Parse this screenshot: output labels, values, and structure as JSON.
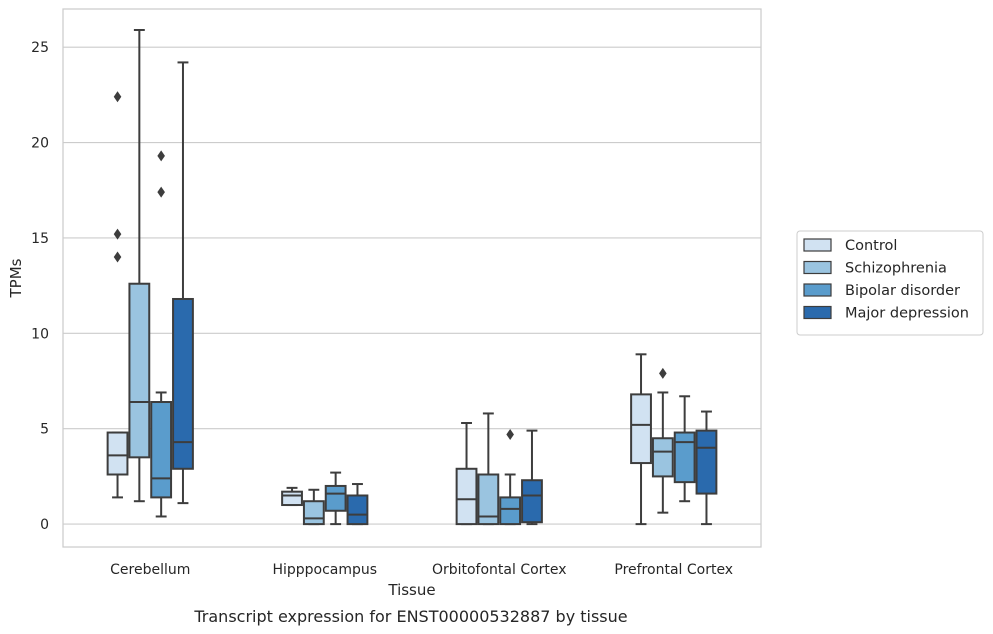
{
  "caption": "Transcript expression for ENST00000532887 by tissue",
  "chart_data": {
    "type": "box",
    "xlabel": "Tissue",
    "ylabel": "TPMs",
    "ylim": [
      -1.2,
      27
    ],
    "yticks": [
      0,
      5,
      10,
      15,
      20,
      25
    ],
    "grid": "horizontal",
    "legend_position": "right",
    "categories": [
      "Cerebellum",
      "Hipppocampus",
      "Orbitofontal Cortex",
      "Prefrontal Cortex"
    ],
    "series": [
      {
        "name": "Control",
        "color": "#d1e2f2",
        "boxes": [
          {
            "whislo": 1.4,
            "q1": 2.6,
            "med": 3.6,
            "q3": 4.8,
            "whishi": 4.8,
            "fliers": [
              14.0,
              15.2,
              22.4
            ]
          },
          {
            "whislo": 1.0,
            "q1": 1.0,
            "med": 1.5,
            "q3": 1.7,
            "whishi": 1.9,
            "fliers": []
          },
          {
            "whislo": 0.0,
            "q1": 0.0,
            "med": 1.3,
            "q3": 2.9,
            "whishi": 5.3,
            "fliers": []
          },
          {
            "whislo": 0.0,
            "q1": 3.2,
            "med": 5.2,
            "q3": 6.8,
            "whishi": 8.9,
            "fliers": []
          }
        ]
      },
      {
        "name": "Schizophrenia",
        "color": "#9ac4e0",
        "boxes": [
          {
            "whislo": 1.2,
            "q1": 3.5,
            "med": 6.4,
            "q3": 12.6,
            "whishi": 25.9,
            "fliers": []
          },
          {
            "whislo": 0.0,
            "q1": 0.0,
            "med": 0.3,
            "q3": 1.2,
            "whishi": 1.8,
            "fliers": []
          },
          {
            "whislo": 0.0,
            "q1": 0.0,
            "med": 0.4,
            "q3": 2.6,
            "whishi": 5.8,
            "fliers": []
          },
          {
            "whislo": 0.6,
            "q1": 2.5,
            "med": 3.8,
            "q3": 4.5,
            "whishi": 6.9,
            "fliers": [
              7.9
            ]
          }
        ]
      },
      {
        "name": "Bipolar disorder",
        "color": "#5a9ccc",
        "boxes": [
          {
            "whislo": 0.4,
            "q1": 1.4,
            "med": 2.4,
            "q3": 6.4,
            "whishi": 6.9,
            "fliers": [
              17.4,
              19.3
            ]
          },
          {
            "whislo": 0.0,
            "q1": 0.7,
            "med": 1.6,
            "q3": 2.0,
            "whishi": 2.7,
            "fliers": []
          },
          {
            "whislo": 0.0,
            "q1": 0.0,
            "med": 0.8,
            "q3": 1.4,
            "whishi": 2.6,
            "fliers": [
              4.7
            ]
          },
          {
            "whislo": 1.2,
            "q1": 2.2,
            "med": 4.3,
            "q3": 4.8,
            "whishi": 6.7,
            "fliers": []
          }
        ]
      },
      {
        "name": "Major depression",
        "color": "#2a6aad",
        "boxes": [
          {
            "whislo": 1.1,
            "q1": 2.9,
            "med": 4.3,
            "q3": 11.8,
            "whishi": 24.2,
            "fliers": []
          },
          {
            "whislo": 0.0,
            "q1": 0.0,
            "med": 0.5,
            "q3": 1.5,
            "whishi": 2.1,
            "fliers": []
          },
          {
            "whislo": 0.0,
            "q1": 0.1,
            "med": 1.5,
            "q3": 2.3,
            "whishi": 4.9,
            "fliers": []
          },
          {
            "whislo": 0.0,
            "q1": 1.6,
            "med": 4.0,
            "q3": 4.9,
            "whishi": 5.9,
            "fliers": []
          }
        ]
      }
    ]
  }
}
